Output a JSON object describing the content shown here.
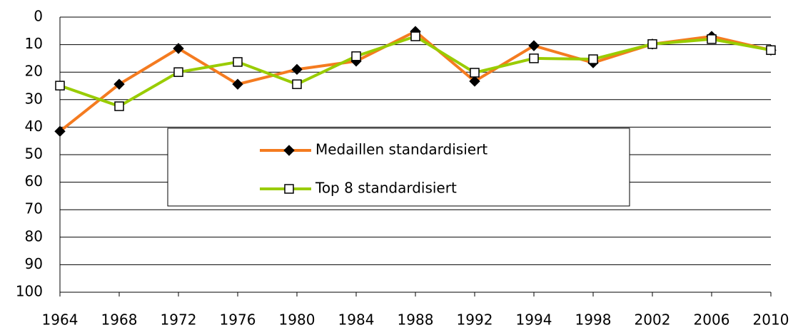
{
  "chart_data": {
    "type": "line",
    "categories": [
      "1964",
      "1968",
      "1972",
      "1976",
      "1980",
      "1984",
      "1988",
      "1992",
      "1994",
      "1998",
      "2002",
      "2006",
      "2010"
    ],
    "series": [
      {
        "name": "Medaillen standardisiert",
        "color": "#f47b20",
        "marker": "diamond",
        "marker_color": "#000000",
        "values": [
          41.5,
          24.4,
          11.4,
          24.4,
          19,
          16,
          5.2,
          23.3,
          10.4,
          16.6,
          9.8,
          7,
          12
        ]
      },
      {
        "name": "Top 8 standardisiert",
        "color": "#99cc00",
        "marker": "square",
        "marker_color": "#ffffff",
        "values": [
          24.9,
          32.4,
          20,
          16.3,
          24.4,
          14.2,
          7,
          20.2,
          15,
          15.3,
          9.8,
          8,
          12
        ]
      }
    ],
    "ylim": [
      100,
      0
    ],
    "yticks": [
      0,
      10,
      20,
      30,
      40,
      50,
      60,
      70,
      80,
      90,
      100
    ],
    "grid": true
  }
}
